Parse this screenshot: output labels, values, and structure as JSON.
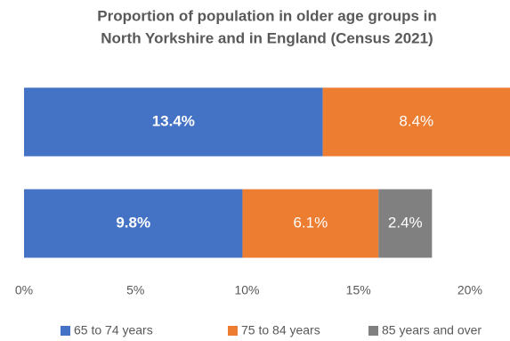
{
  "chart_data": {
    "type": "stacked-barh",
    "title": [
      "Proportion of population in older age groups in",
      "North Yorkshire and in England (Census 2021)"
    ],
    "categories": [
      null,
      null
    ],
    "series": [
      {
        "name": "65 to 74 years",
        "color": "#4472c4",
        "values": [
          13.4,
          9.8
        ],
        "value_labels": [
          "13.4%",
          "9.8%"
        ],
        "label_bold": true
      },
      {
        "name": "75 to 84 years",
        "color": "#ed7d31",
        "values": [
          8.4,
          6.1
        ],
        "value_labels": [
          "8.4%",
          "6.1%"
        ],
        "label_bold": false
      },
      {
        "name": "85 years and over",
        "color": "#808080",
        "values": [
          null,
          2.4
        ],
        "value_labels": [
          null,
          "2.4%"
        ],
        "label_bold": false
      }
    ],
    "xlim": [
      0,
      21.8
    ],
    "xticks": [
      {
        "value": 0,
        "label": "0%"
      },
      {
        "value": 5,
        "label": "5%"
      },
      {
        "value": 10,
        "label": "10%"
      },
      {
        "value": 15,
        "label": "15%"
      },
      {
        "value": 20,
        "label": "20%"
      }
    ],
    "grid": false,
    "legend": "bottom"
  }
}
